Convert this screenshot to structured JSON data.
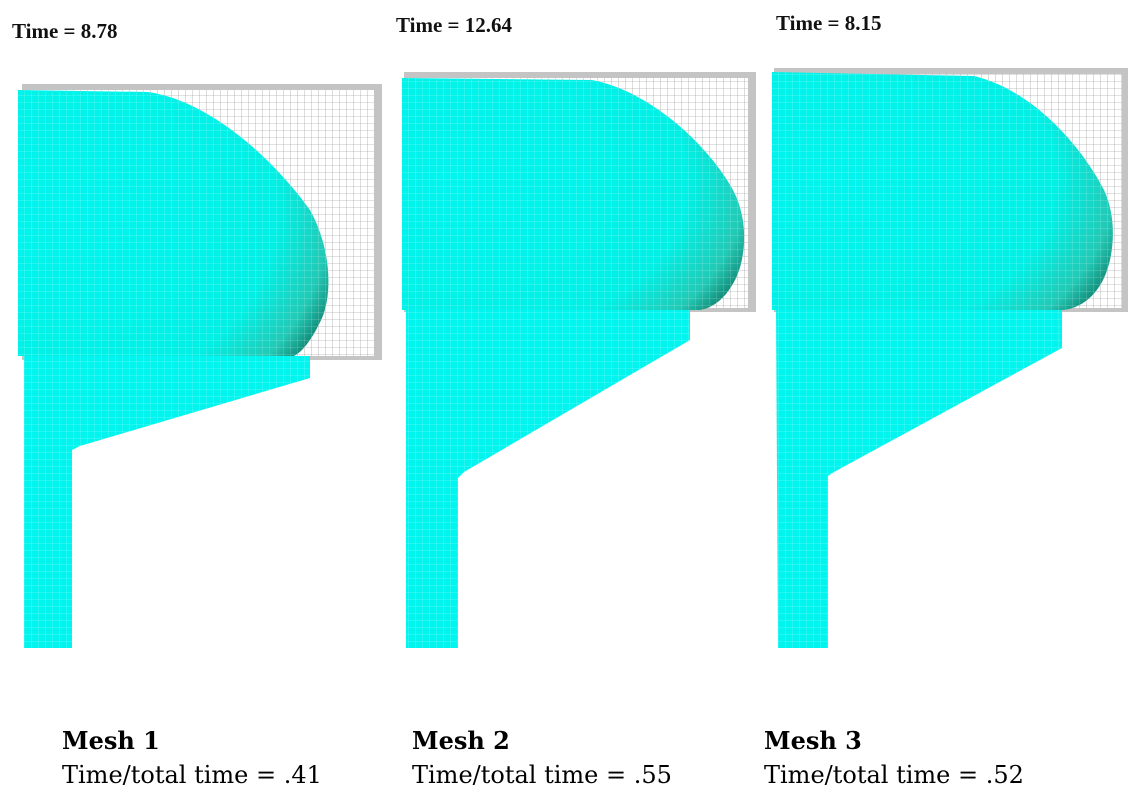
{
  "panels": [
    {
      "time_label": "Time = 8.78",
      "mesh_name": "Mesh 1",
      "ratio_text": "Time/total time = .41",
      "time_over_total": 0.41
    },
    {
      "time_label": "Time = 12.64",
      "mesh_name": "Mesh 2",
      "ratio_text": "Time/total time = .55",
      "time_over_total": 0.55
    },
    {
      "time_label": "Time = 8.15",
      "mesh_name": "Mesh 3",
      "ratio_text": "Time/total time = .52",
      "time_over_total": 0.52
    }
  ],
  "colors": {
    "fill": "#00f5ee",
    "fill_dark": "#1fa68e",
    "mesh_line": "#8e8e8e",
    "mold_shadow": "#c4c4c4"
  }
}
